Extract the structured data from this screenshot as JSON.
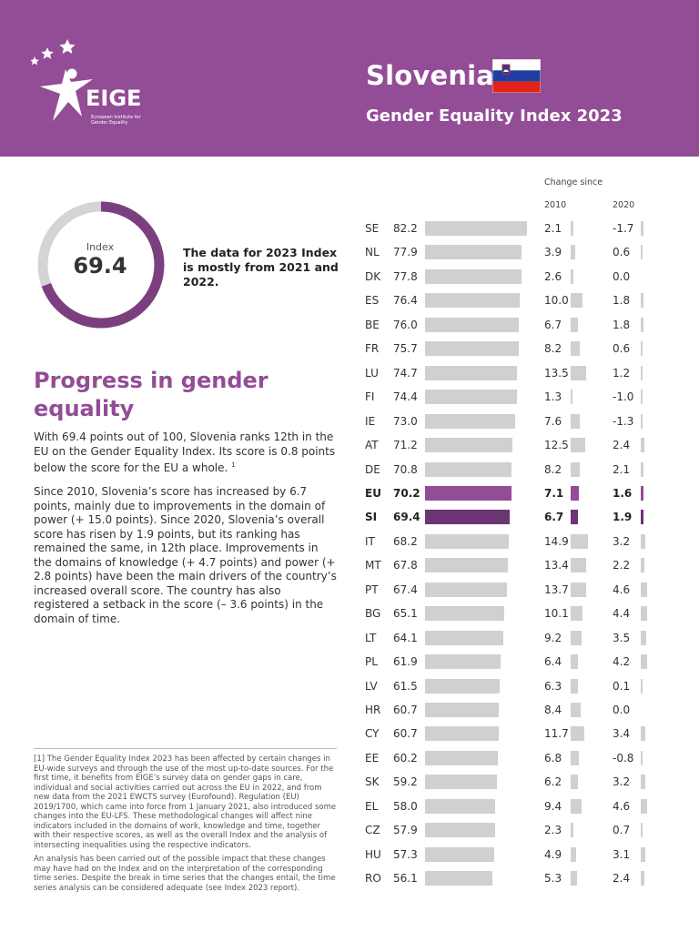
{
  "header": {
    "country": "Slovenia",
    "index_title": "Gender Equality Index 2023",
    "logo_text": "EIGE",
    "logo_subtitle": "European Institute for Gender Equality"
  },
  "summary": {
    "index_label": "Index",
    "index_value": "69.4",
    "index_fraction": 0.694,
    "note": "The data for 2023 Index is mostly from 2021 and 2022."
  },
  "progress": {
    "title": "Progress in gender equality",
    "p1": "With 69.4 points out of 100, Slovenia ranks 12th in the EU on the Gender Equality Index. Its score is 0.8 points below the score for the EU a whole.",
    "p1_ref": "1",
    "p2": "Since 2010, Slovenia’s score has increased by 6.7 points, mainly due to improvements in the domain of power (+ 15.0 points). Since 2020, Slovenia’s overall score has risen by 1.9 points, but its ranking has remained the same, in 12th place. Improvements in the domains of knowledge (+ 4.7 points) and power (+ 2.8 points) have been the main drivers of the country’s increased overall score. The country has also registered a setback in the score (– 3.6 points) in the domain of time."
  },
  "footnotes": {
    "f1": "[1] The Gender Equality Index 2023 has been affected by certain changes in EU-wide surveys and through the use of the most up-to-date sources. For the first time, it benefits from EIGE’s survey data on gender gaps in care, individual and social activities carried out across the EU in 2022, and from new data from the 2021 EWCTS survey (Eurofound). Regulation (EU) 2019/1700, which came into force from 1 January 2021, also introduced some changes into the EU-LFS. These methodological changes will affect nine indicators included in the domains of work, knowledge and time, together with their respective scores, as well as the overall Index and the analysis of intersecting inequalities using the respective indicators.",
    "f2": "An analysis has been carried out of the possible impact that these changes may have had on the Index and on the interpretation of the corresponding time series. Despite the break in time series that the changes entail, the time series analysis can be considered adequate (see Index 2023 report)."
  },
  "colors": {
    "brand_purple": "#934c96",
    "eu_bar": "#934c96",
    "si_bar": "#6c3573",
    "grey_bar": "#d0d0d0",
    "track": "#d4d4d4"
  },
  "chart_data": {
    "type": "table",
    "header": "Change since",
    "col_2010": "2010",
    "col_2020": "2020",
    "rows": [
      {
        "code": "SE",
        "score": "82.2",
        "ch2010": "2.1",
        "ch2020": "-1.7"
      },
      {
        "code": "NL",
        "score": "77.9",
        "ch2010": "3.9",
        "ch2020": "0.6"
      },
      {
        "code": "DK",
        "score": "77.8",
        "ch2010": "2.6",
        "ch2020": "0.0"
      },
      {
        "code": "ES",
        "score": "76.4",
        "ch2010": "10.0",
        "ch2020": "1.8"
      },
      {
        "code": "BE",
        "score": "76.0",
        "ch2010": "6.7",
        "ch2020": "1.8"
      },
      {
        "code": "FR",
        "score": "75.7",
        "ch2010": "8.2",
        "ch2020": "0.6"
      },
      {
        "code": "LU",
        "score": "74.7",
        "ch2010": "13.5",
        "ch2020": "1.2"
      },
      {
        "code": "FI",
        "score": "74.4",
        "ch2010": "1.3",
        "ch2020": "-1.0"
      },
      {
        "code": "IE",
        "score": "73.0",
        "ch2010": "7.6",
        "ch2020": "-1.3"
      },
      {
        "code": "AT",
        "score": "71.2",
        "ch2010": "12.5",
        "ch2020": "2.4"
      },
      {
        "code": "DE",
        "score": "70.8",
        "ch2010": "8.2",
        "ch2020": "2.1"
      },
      {
        "code": "EU",
        "score": "70.2",
        "ch2010": "7.1",
        "ch2020": "1.6"
      },
      {
        "code": "SI",
        "score": "69.4",
        "ch2010": "6.7",
        "ch2020": "1.9"
      },
      {
        "code": "IT",
        "score": "68.2",
        "ch2010": "14.9",
        "ch2020": "3.2"
      },
      {
        "code": "MT",
        "score": "67.8",
        "ch2010": "13.4",
        "ch2020": "2.2"
      },
      {
        "code": "PT",
        "score": "67.4",
        "ch2010": "13.7",
        "ch2020": "4.6"
      },
      {
        "code": "BG",
        "score": "65.1",
        "ch2010": "10.1",
        "ch2020": "4.4"
      },
      {
        "code": "LT",
        "score": "64.1",
        "ch2010": "9.2",
        "ch2020": "3.5"
      },
      {
        "code": "PL",
        "score": "61.9",
        "ch2010": "6.4",
        "ch2020": "4.2"
      },
      {
        "code": "LV",
        "score": "61.5",
        "ch2010": "6.3",
        "ch2020": "0.1"
      },
      {
        "code": "HR",
        "score": "60.7",
        "ch2010": "8.4",
        "ch2020": "0.0"
      },
      {
        "code": "CY",
        "score": "60.7",
        "ch2010": "11.7",
        "ch2020": "3.4"
      },
      {
        "code": "EE",
        "score": "60.2",
        "ch2010": "6.8",
        "ch2020": "-0.8"
      },
      {
        "code": "SK",
        "score": "59.2",
        "ch2010": "6.2",
        "ch2020": "3.2"
      },
      {
        "code": "EL",
        "score": "58.0",
        "ch2010": "9.4",
        "ch2020": "4.6"
      },
      {
        "code": "CZ",
        "score": "57.9",
        "ch2010": "2.3",
        "ch2020": "0.7"
      },
      {
        "code": "HU",
        "score": "57.3",
        "ch2010": "4.9",
        "ch2020": "3.1"
      },
      {
        "code": "RO",
        "score": "56.1",
        "ch2010": "5.3",
        "ch2020": "2.4"
      }
    ]
  }
}
